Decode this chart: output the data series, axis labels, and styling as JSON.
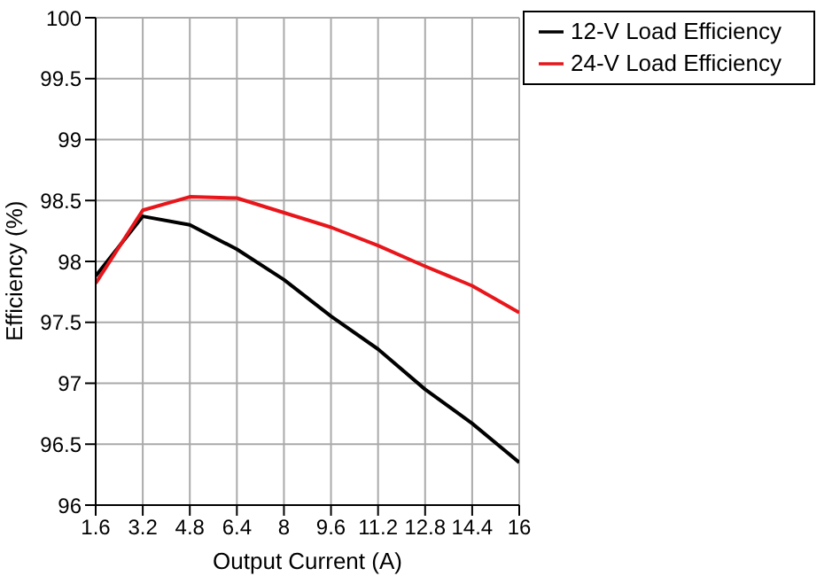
{
  "chart_data": {
    "type": "line",
    "xlabel": "Output Current (A)",
    "ylabel": "Efficiency (%)",
    "x": [
      1.6,
      3.2,
      4.8,
      6.4,
      8,
      9.6,
      11.2,
      12.8,
      14.4,
      16
    ],
    "series": [
      {
        "name": "12-V Load Efficiency",
        "color": "#000000",
        "values": [
          97.88,
          98.37,
          98.3,
          98.1,
          97.85,
          97.55,
          97.28,
          96.95,
          96.67,
          96.35
        ]
      },
      {
        "name": "24-V Load Efficiency",
        "color": "#e8161b",
        "values": [
          97.82,
          98.42,
          98.53,
          98.52,
          98.4,
          98.28,
          98.13,
          97.96,
          97.8,
          97.58
        ]
      }
    ],
    "xlim": [
      1.6,
      16
    ],
    "xticks": [
      1.6,
      3.2,
      4.8,
      6.4,
      8,
      9.6,
      11.2,
      12.8,
      14.4,
      16
    ],
    "ylim": [
      96,
      100
    ],
    "yticks": [
      96,
      96.5,
      97,
      97.5,
      98,
      98.5,
      99,
      99.5,
      100
    ],
    "grid": true,
    "legend": "top right",
    "marker": "none",
    "line_style": "solid"
  }
}
